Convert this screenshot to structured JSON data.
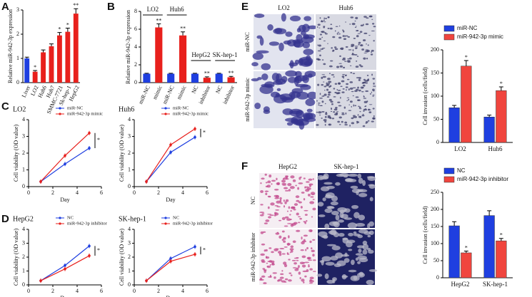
{
  "chart_data": [
    {
      "panel_label": "A",
      "type": "bar",
      "y_label": "Relative miR-942-3p expression",
      "categories": [
        "Liver",
        "LO2",
        "Huh6",
        "Huh7",
        "SMMC-7721",
        "Sk-hep-1",
        "HepG2"
      ],
      "values": [
        1,
        0.45,
        1.25,
        1.5,
        1.95,
        2.1,
        2.85
      ],
      "errors": [
        0.05,
        0.05,
        0.1,
        0.1,
        0.12,
        0.15,
        0.2
      ],
      "colors": [
        "#1f3fe0",
        "#e8201c",
        "#e8201c",
        "#e8201c",
        "#e8201c",
        "#e8201c",
        "#e8201c"
      ],
      "annotations": [
        null,
        "*",
        null,
        null,
        "*",
        "*",
        "**"
      ],
      "ylim": [
        0,
        3
      ],
      "yticks": [
        0,
        1,
        2,
        3
      ]
    },
    {
      "panel_label": "B",
      "type": "bar",
      "y_label": "Relative miR-942-3p expression",
      "categories": [
        "miR-NC",
        "mimic",
        "miR-NC",
        "mimic",
        "NC",
        "inhibitor",
        "NC",
        "inhibitor"
      ],
      "groups": [
        "LO2",
        "Huh6",
        "HepG2",
        "SK-hep-1"
      ],
      "values": [
        1,
        6.2,
        1,
        5.3,
        1,
        0.55,
        1,
        0.6
      ],
      "errors": [
        0.05,
        0.4,
        0.05,
        0.4,
        0.05,
        0.1,
        0.05,
        0.1
      ],
      "colors": [
        "#1f3fe0",
        "#e8201c",
        "#1f3fe0",
        "#e8201c",
        "#1f3fe0",
        "#e8201c",
        "#1f3fe0",
        "#e8201c"
      ],
      "annotations": [
        null,
        "**",
        null,
        "**",
        null,
        "**",
        null,
        "**"
      ],
      "ylim": [
        0,
        8
      ],
      "yticks": [
        0,
        2,
        4,
        6,
        8
      ]
    },
    {
      "panel_label": "C",
      "type": "line",
      "title": "LO2",
      "x_label": "Day",
      "y_label": "Cell viability (OD value)",
      "x": [
        1,
        3,
        5
      ],
      "series": [
        {
          "name": "miR-NC",
          "color": "#1f3fe0",
          "values": [
            0.3,
            1.35,
            2.3
          ]
        },
        {
          "name": "miR-942-3p mimic",
          "color": "#e8201c",
          "values": [
            0.3,
            1.85,
            3.2
          ]
        }
      ],
      "xlim": [
        0,
        6
      ],
      "xticks": [
        0,
        2,
        4,
        6
      ],
      "ylim": [
        0,
        4
      ],
      "yticks": [
        0,
        1,
        2,
        3,
        4
      ],
      "annotation": "*"
    },
    {
      "type": "line",
      "title": "Huh6",
      "x_label": "Day",
      "y_label": "Cell viability (OD value)",
      "x": [
        1,
        3,
        5
      ],
      "series": [
        {
          "name": "miR-NC",
          "color": "#1f3fe0",
          "values": [
            0.3,
            2.05,
            2.95
          ]
        },
        {
          "name": "miR-942-3p mimic",
          "color": "#e8201c",
          "values": [
            0.3,
            2.5,
            3.45
          ]
        }
      ],
      "xlim": [
        0,
        6
      ],
      "xticks": [
        0,
        2,
        4,
        6
      ],
      "ylim": [
        0,
        4
      ],
      "yticks": [
        0,
        1,
        2,
        3,
        4
      ],
      "annotation": "*"
    },
    {
      "panel_label": "D",
      "type": "line",
      "title": "HepG2",
      "x_label": "Day",
      "y_label": "Cell viability (OD value)",
      "x": [
        1,
        3,
        5
      ],
      "series": [
        {
          "name": "NC",
          "color": "#1f3fe0",
          "values": [
            0.3,
            1.4,
            2.8
          ]
        },
        {
          "name": "miR-942-3p inhibitor",
          "color": "#e8201c",
          "values": [
            0.3,
            1.15,
            2.1
          ]
        }
      ],
      "xlim": [
        0,
        6
      ],
      "xticks": [
        0,
        2,
        4,
        6
      ],
      "ylim": [
        0,
        4
      ],
      "yticks": [
        0,
        1,
        2,
        3,
        4
      ],
      "annotation": "*"
    },
    {
      "type": "line",
      "title": "SK-hep-1",
      "x_label": "Day",
      "y_label": "Cell viability (OD value)",
      "x": [
        1,
        3,
        5
      ],
      "series": [
        {
          "name": "NC",
          "color": "#1f3fe0",
          "values": [
            0.3,
            1.9,
            2.75
          ]
        },
        {
          "name": "miR-942-3p inhibitor",
          "color": "#e8201c",
          "values": [
            0.3,
            1.7,
            2.2
          ]
        }
      ],
      "xlim": [
        0,
        6
      ],
      "xticks": [
        0,
        2,
        4,
        6
      ],
      "ylim": [
        0,
        4
      ],
      "yticks": [
        0,
        1,
        2,
        3,
        4
      ],
      "annotation": "*"
    },
    {
      "type": "grouped_bar",
      "y_label": "Cell invasion (cells/field)",
      "categories": [
        "LO2",
        "Huh6"
      ],
      "series": [
        {
          "name": "miR-NC",
          "color": "#1f3fe0",
          "values": [
            75,
            55
          ],
          "errors": [
            5,
            4
          ]
        },
        {
          "name": "miR-942-3p mimic",
          "color": "#f0453e",
          "values": [
            165,
            112
          ],
          "errors": [
            12,
            8
          ],
          "annotations": [
            "*",
            "*"
          ]
        }
      ],
      "ylim": [
        0,
        200
      ],
      "yticks": [
        0,
        50,
        100,
        150,
        200
      ]
    },
    {
      "type": "grouped_bar",
      "y_label": "Cell invasion (cells/field)",
      "categories": [
        "HepG2",
        "SK-hep-1"
      ],
      "series": [
        {
          "name": "NC",
          "color": "#1f3fe0",
          "values": [
            152,
            182
          ],
          "errors": [
            12,
            14
          ]
        },
        {
          "name": "miR-942-3p inhibitor",
          "color": "#f0453e",
          "values": [
            73,
            108
          ],
          "errors": [
            5,
            7
          ],
          "annotations": [
            "*",
            "*"
          ]
        }
      ],
      "ylim": [
        0,
        250
      ],
      "yticks": [
        0,
        50,
        100,
        150,
        200,
        250
      ]
    }
  ],
  "images": [
    {
      "panel_label": "E",
      "columns": [
        "LO2",
        "Huh6"
      ],
      "rows": [
        "miR-NC",
        "miR-942-3p mimic"
      ]
    },
    {
      "panel_label": "F",
      "columns": [
        "HepG2",
        "SK-hep-1"
      ],
      "rows": [
        "NC",
        "miR-942-3p inhibitor"
      ]
    }
  ]
}
